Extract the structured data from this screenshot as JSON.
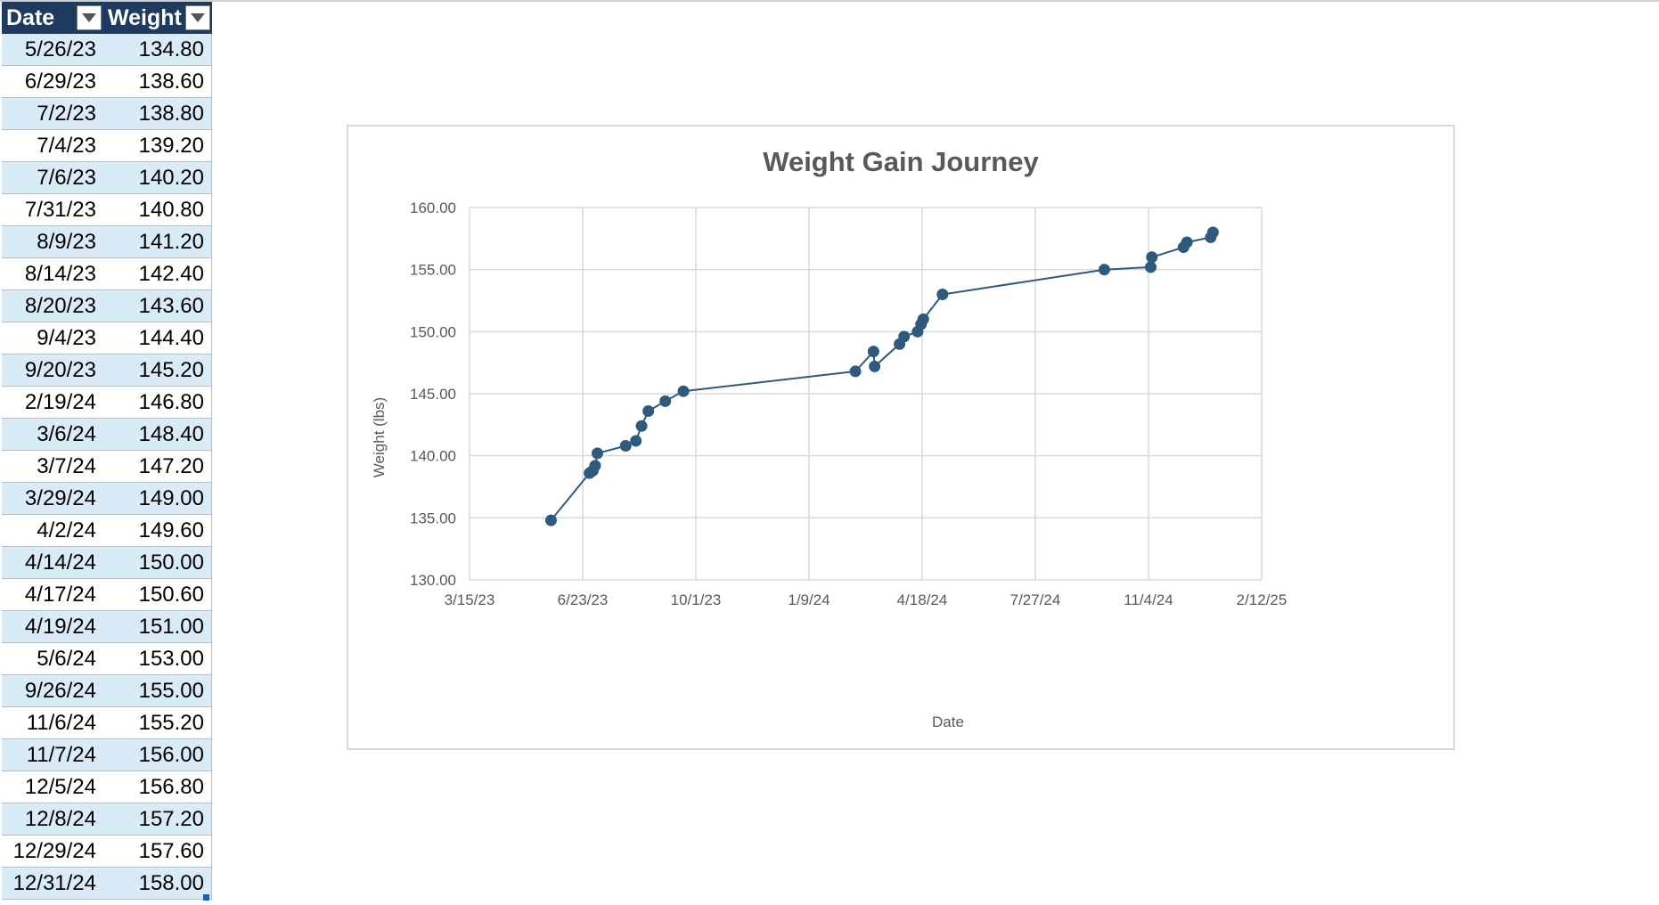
{
  "table": {
    "headers": [
      "Date",
      "Weight"
    ],
    "rows": [
      [
        "5/26/23",
        "134.80"
      ],
      [
        "6/29/23",
        "138.60"
      ],
      [
        "7/2/23",
        "138.80"
      ],
      [
        "7/4/23",
        "139.20"
      ],
      [
        "7/6/23",
        "140.20"
      ],
      [
        "7/31/23",
        "140.80"
      ],
      [
        "8/9/23",
        "141.20"
      ],
      [
        "8/14/23",
        "142.40"
      ],
      [
        "8/20/23",
        "143.60"
      ],
      [
        "9/4/23",
        "144.40"
      ],
      [
        "9/20/23",
        "145.20"
      ],
      [
        "2/19/24",
        "146.80"
      ],
      [
        "3/6/24",
        "148.40"
      ],
      [
        "3/7/24",
        "147.20"
      ],
      [
        "3/29/24",
        "149.00"
      ],
      [
        "4/2/24",
        "149.60"
      ],
      [
        "4/14/24",
        "150.00"
      ],
      [
        "4/17/24",
        "150.60"
      ],
      [
        "4/19/24",
        "151.00"
      ],
      [
        "5/6/24",
        "153.00"
      ],
      [
        "9/26/24",
        "155.00"
      ],
      [
        "11/6/24",
        "155.20"
      ],
      [
        "11/7/24",
        "156.00"
      ],
      [
        "12/5/24",
        "156.80"
      ],
      [
        "12/8/24",
        "157.20"
      ],
      [
        "12/29/24",
        "157.60"
      ],
      [
        "12/31/24",
        "158.00"
      ]
    ]
  },
  "colors": {
    "header_bg": "#1f3a5f",
    "band": "#d8ebf7",
    "series": "#2e5a7e",
    "gridline": "#d9d9d9"
  },
  "icons": {
    "filter": "filter-dropdown-icon"
  },
  "chart_data": {
    "type": "scatter",
    "title": "Weight Gain Journey",
    "xlabel": "Date",
    "ylabel": "Weight (lbs)",
    "x_axis_type": "date",
    "xlim": [
      "2023-03-15",
      "2025-02-12"
    ],
    "x_ticks": [
      "3/15/23",
      "6/23/23",
      "10/1/23",
      "1/9/24",
      "4/18/24",
      "7/27/24",
      "11/4/24",
      "2/12/25"
    ],
    "x_tick_dates": [
      "2023-03-15",
      "2023-06-23",
      "2023-10-01",
      "2024-01-09",
      "2024-04-18",
      "2024-07-27",
      "2024-11-04",
      "2025-02-12"
    ],
    "ylim": [
      130,
      160
    ],
    "y_ticks": [
      "130.00",
      "135.00",
      "140.00",
      "145.00",
      "150.00",
      "155.00",
      "160.00"
    ],
    "y_tick_values": [
      130,
      135,
      140,
      145,
      150,
      155,
      160
    ],
    "grid": true,
    "markers": "circle",
    "connecting_line": true,
    "series": [
      {
        "x": [
          "2023-05-26",
          "2023-06-29",
          "2023-07-02",
          "2023-07-04",
          "2023-07-06",
          "2023-07-31",
          "2023-08-09",
          "2023-08-14",
          "2023-08-20",
          "2023-09-04",
          "2023-09-20",
          "2024-02-19",
          "2024-03-06",
          "2024-03-07",
          "2024-03-29",
          "2024-04-02",
          "2024-04-14",
          "2024-04-17",
          "2024-04-19",
          "2024-05-06",
          "2024-09-26",
          "2024-11-06",
          "2024-11-07",
          "2024-12-05",
          "2024-12-08",
          "2024-12-29",
          "2024-12-31"
        ],
        "y": [
          134.8,
          138.6,
          138.8,
          139.2,
          140.2,
          140.8,
          141.2,
          142.4,
          143.6,
          144.4,
          145.2,
          146.8,
          148.4,
          147.2,
          149.0,
          149.6,
          150.0,
          150.6,
          151.0,
          153.0,
          155.0,
          155.2,
          156.0,
          156.8,
          157.2,
          157.6,
          158.0
        ]
      }
    ]
  }
}
